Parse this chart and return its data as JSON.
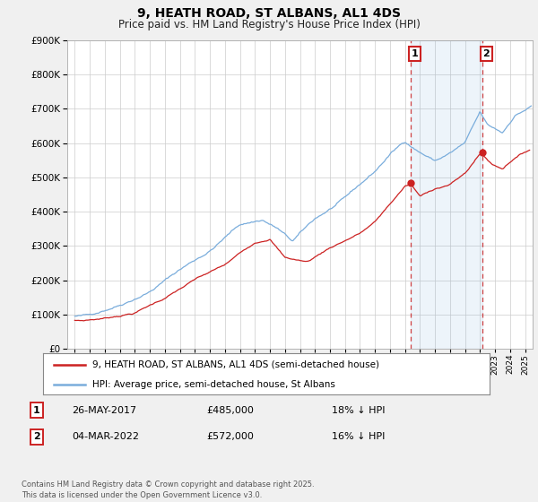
{
  "title": "9, HEATH ROAD, ST ALBANS, AL1 4DS",
  "subtitle": "Price paid vs. HM Land Registry's House Price Index (HPI)",
  "legend_line1": "9, HEATH ROAD, ST ALBANS, AL1 4DS (semi-detached house)",
  "legend_line2": "HPI: Average price, semi-detached house, St Albans",
  "footnote": "Contains HM Land Registry data © Crown copyright and database right 2025.\nThis data is licensed under the Open Government Licence v3.0.",
  "hpi_color": "#7aaddc",
  "price_color": "#cc2222",
  "background_color": "#f0f0f0",
  "plot_bg_color": "#ffffff",
  "grid_color": "#cccccc",
  "marker1_date_label": "26-MAY-2017",
  "marker1_price": 485000,
  "marker1_pct": "18% ↓ HPI",
  "marker2_date_label": "04-MAR-2022",
  "marker2_price": 572000,
  "marker2_pct": "16% ↓ HPI",
  "vline1_x": 2017.4,
  "vline2_x": 2022.17,
  "ylim_min": 0,
  "ylim_max": 900000,
  "xlim_min": 1994.5,
  "xlim_max": 2025.5
}
